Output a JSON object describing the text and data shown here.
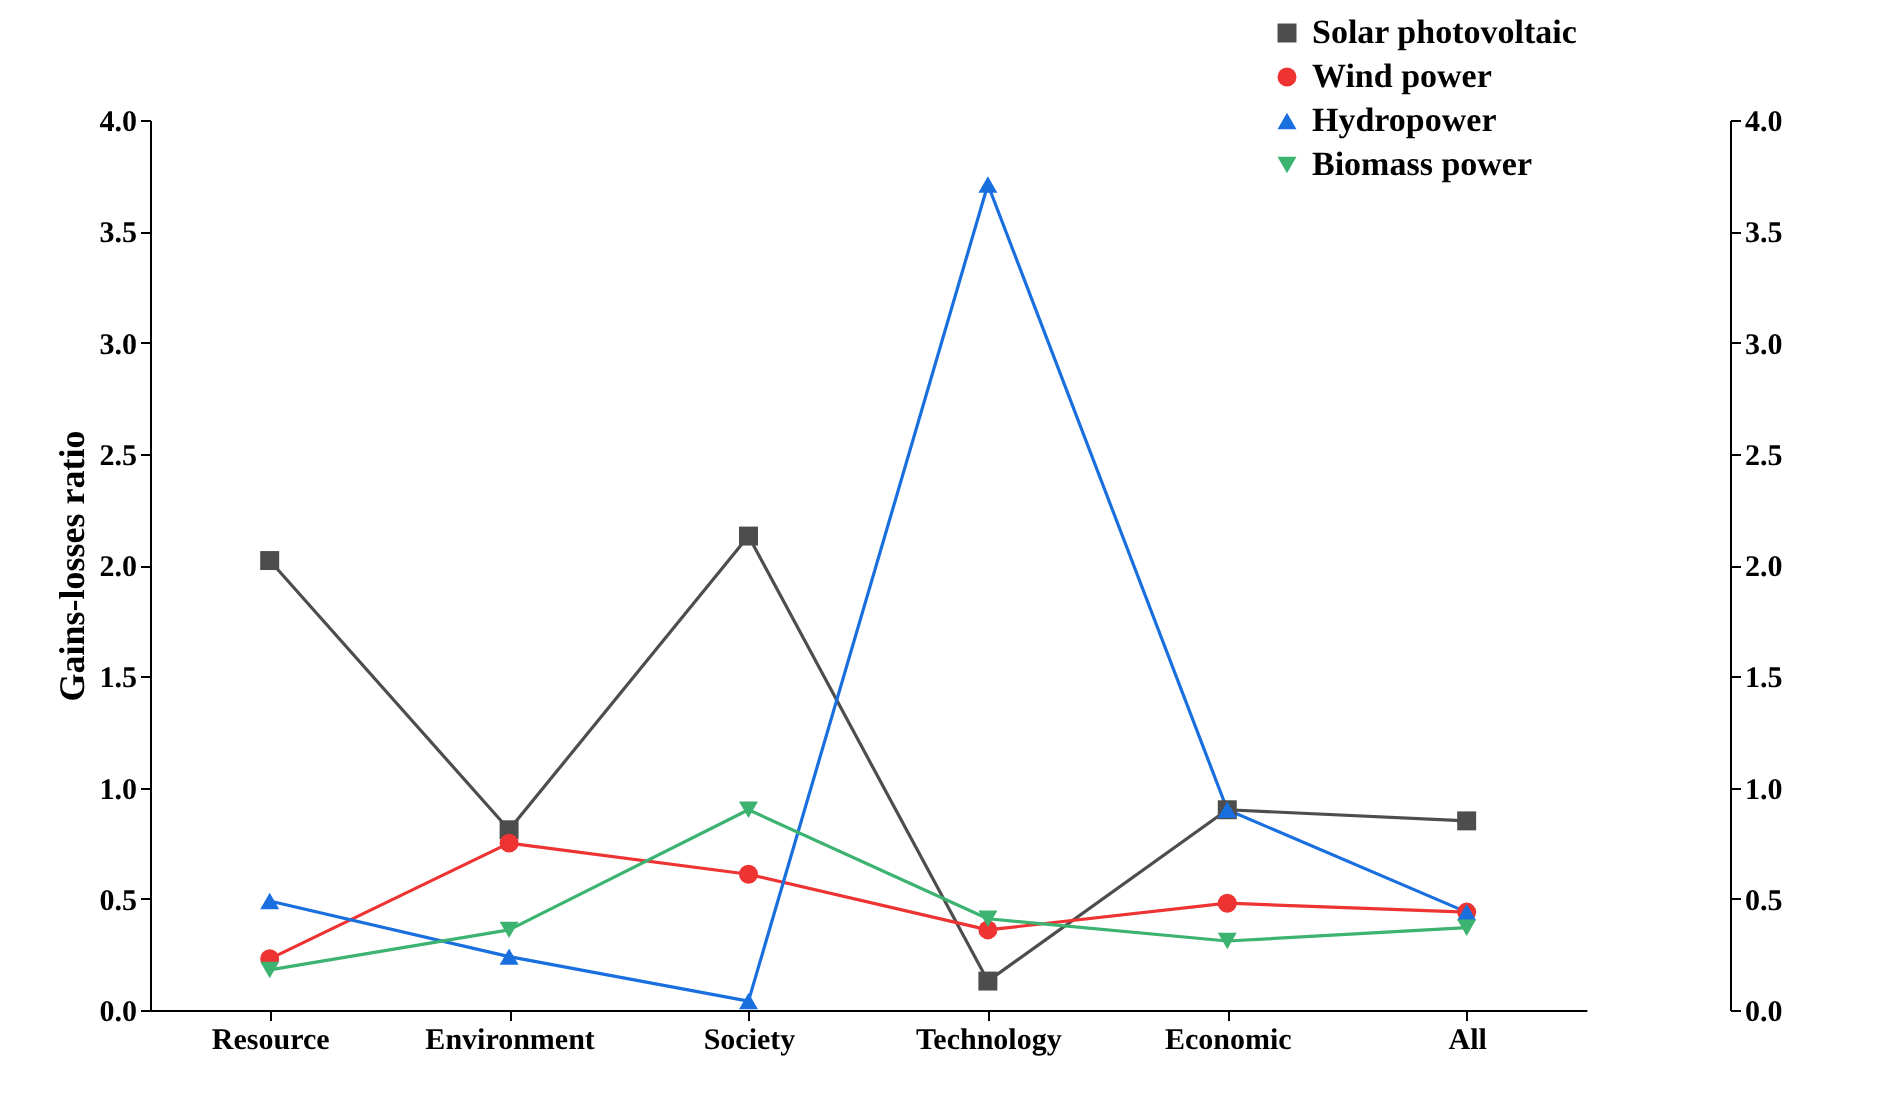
{
  "chart_data": {
    "type": "line",
    "ylabel": "Gains-losses ratio",
    "categories": [
      "Resource",
      "Environment",
      "Society",
      "Technology",
      "Economic",
      "All"
    ],
    "series": [
      {
        "name": "Solar photovoltaic",
        "color": "#4d4d4d",
        "marker": "square",
        "values": [
          2.02,
          0.81,
          2.13,
          0.13,
          0.9,
          0.85
        ]
      },
      {
        "name": "Wind power",
        "color": "#ee3333",
        "marker": "circle",
        "values": [
          0.23,
          0.75,
          0.61,
          0.36,
          0.48,
          0.44
        ]
      },
      {
        "name": "Hydropower",
        "color": "#1a6fdf",
        "marker": "triangle",
        "values": [
          0.49,
          0.24,
          0.04,
          3.71,
          0.9,
          0.44
        ]
      },
      {
        "name": "Biomass power",
        "color": "#3cb371",
        "marker": "triangle-down",
        "values": [
          0.18,
          0.36,
          0.9,
          0.41,
          0.31,
          0.37
        ]
      }
    ],
    "ylim": [
      0,
      4
    ],
    "yticks": [
      {
        "value": 0,
        "label": "0.0"
      },
      {
        "value": 0.5,
        "label": "0.5"
      },
      {
        "value": 1,
        "label": "1.0"
      },
      {
        "value": 1.5,
        "label": "1.5"
      },
      {
        "value": 2,
        "label": "2.0"
      },
      {
        "value": 2.5,
        "label": "2.5"
      },
      {
        "value": 3,
        "label": "3.0"
      },
      {
        "value": 3.5,
        "label": "3.5"
      },
      {
        "value": 4,
        "label": "4.0"
      }
    ],
    "y2lim": [
      0,
      4
    ],
    "y2ticks": [
      {
        "value": 0,
        "label": "0.0"
      },
      {
        "value": 0.5,
        "label": "0.5"
      },
      {
        "value": 1,
        "label": "1.0"
      },
      {
        "value": 1.5,
        "label": "1.5"
      },
      {
        "value": 2,
        "label": "2.0"
      },
      {
        "value": 2.5,
        "label": "2.5"
      },
      {
        "value": 3,
        "label": "3.0"
      },
      {
        "value": 3.5,
        "label": "3.5"
      },
      {
        "value": 4,
        "label": "4.0"
      }
    ],
    "grid": false,
    "legend": "top right",
    "line_style": "solid"
  }
}
